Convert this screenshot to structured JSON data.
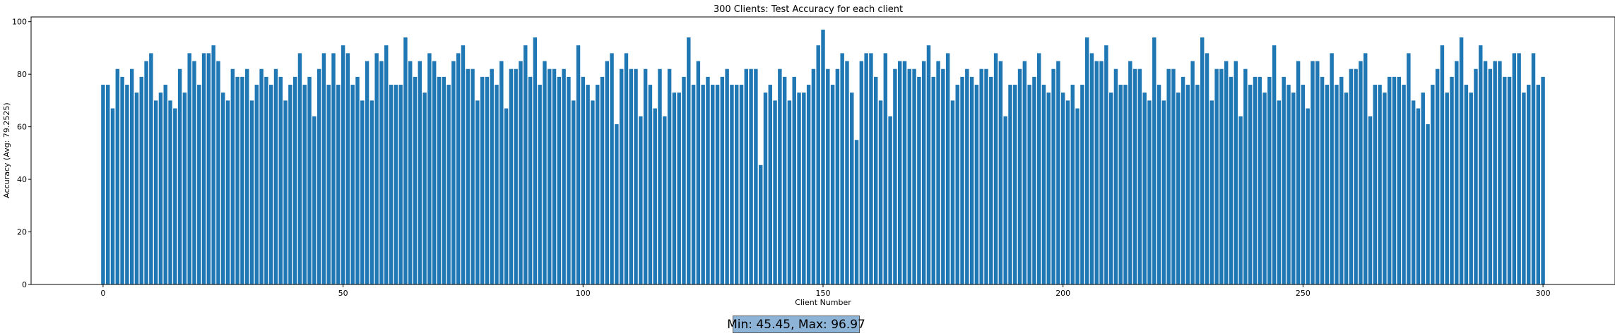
{
  "chart_data": {
    "type": "bar",
    "title": "300 Clients: Test Accuracy for each client",
    "xlabel": "Client Number",
    "ylabel": "Accuracy (Avg: 79.2525)",
    "xlim": [
      -15,
      315
    ],
    "ylim": [
      0,
      101.8
    ],
    "xticks": [
      0,
      50,
      100,
      150,
      200,
      250,
      300
    ],
    "yticks": [
      0,
      20,
      40,
      60,
      80,
      100
    ],
    "bar_color": "#1f77b4",
    "grid": false,
    "legend": "none",
    "x": "0..299",
    "values": [
      76,
      76,
      67,
      82,
      79,
      76,
      82,
      73,
      79,
      85,
      88,
      70,
      73,
      76,
      70,
      67,
      82,
      73,
      88,
      85,
      76,
      88,
      88,
      91,
      85,
      73,
      70,
      82,
      79,
      79,
      82,
      70,
      76,
      82,
      79,
      76,
      82,
      79,
      70,
      76,
      79,
      88,
      76,
      79,
      64,
      82,
      88,
      76,
      88,
      76,
      91,
      88,
      76,
      79,
      70,
      85,
      70,
      88,
      85,
      91,
      76,
      76,
      76,
      94,
      85,
      79,
      85,
      73,
      88,
      85,
      79,
      79,
      76,
      85,
      88,
      91,
      82,
      82,
      70,
      79,
      79,
      82,
      76,
      85,
      67,
      82,
      82,
      85,
      91,
      79,
      94,
      76,
      85,
      82,
      82,
      79,
      82,
      79,
      70,
      91,
      79,
      76,
      70,
      76,
      79,
      85,
      88,
      61,
      82,
      88,
      82,
      82,
      64,
      82,
      76,
      67,
      82,
      64,
      82,
      73,
      73,
      79,
      94,
      76,
      85,
      76,
      79,
      76,
      76,
      79,
      82,
      76,
      76,
      76,
      82,
      82,
      82,
      45.45,
      73,
      76,
      70,
      82,
      79,
      70,
      79,
      73,
      73,
      76,
      82,
      91,
      96.97,
      82,
      76,
      82,
      88,
      85,
      73,
      55,
      85,
      88,
      88,
      79,
      70,
      88,
      64,
      82,
      85,
      85,
      82,
      82,
      79,
      85,
      91,
      79,
      85,
      82,
      88,
      70,
      76,
      79,
      82,
      79,
      76,
      82,
      82,
      79,
      88,
      85,
      64,
      76,
      76,
      82,
      85,
      76,
      79,
      88,
      76,
      73,
      82,
      85,
      73,
      70,
      76,
      67,
      76,
      94,
      88,
      85,
      85,
      91,
      73,
      82,
      76,
      76,
      85,
      82,
      82,
      73,
      70,
      94,
      76,
      70,
      82,
      82,
      73,
      79,
      76,
      85,
      76,
      94,
      88,
      70,
      82,
      82,
      85,
      79,
      85,
      64,
      82,
      76,
      79,
      79,
      73,
      79,
      91,
      70,
      79,
      76,
      73,
      85,
      76,
      67,
      85,
      85,
      79,
      76,
      88,
      76,
      79,
      73,
      82,
      82,
      85,
      88,
      64,
      76,
      76,
      73,
      79,
      79,
      79,
      76,
      88,
      70,
      67,
      73,
      61,
      76,
      82,
      91,
      73,
      79,
      85,
      94,
      76,
      73,
      82,
      91,
      85,
      82,
      85,
      85,
      79,
      79,
      88,
      88,
      73,
      76,
      88,
      76,
      79
    ]
  },
  "annotation": {
    "text": "Min: 45.45, Max: 96.97"
  }
}
